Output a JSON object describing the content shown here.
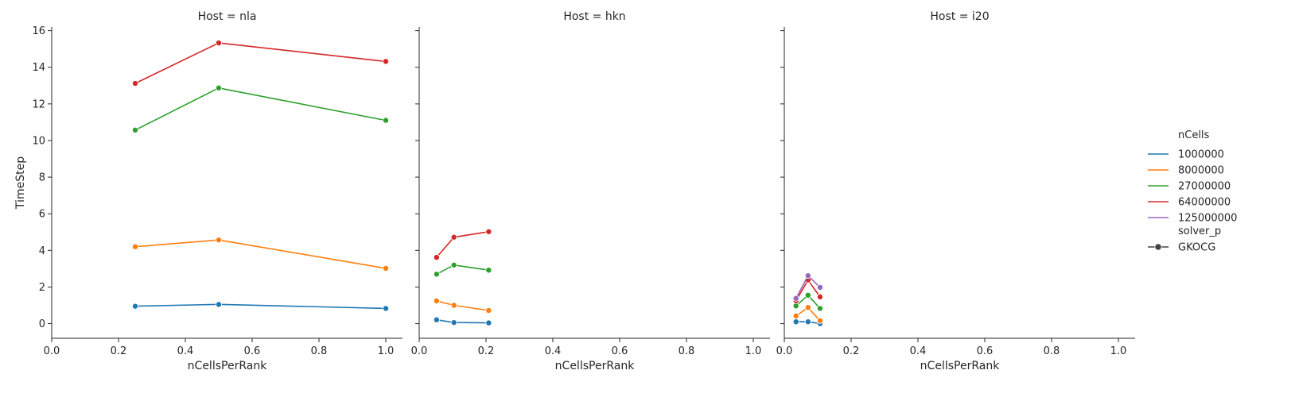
{
  "chart_data": {
    "type": "line",
    "ylabel": "TimeStep",
    "xlabel": "nCellsPerRank",
    "xlim": [
      0.0,
      1.05
    ],
    "ylim": [
      -0.8,
      16.2
    ],
    "xticks": [
      0.0,
      0.2,
      0.4,
      0.6,
      0.8,
      1.0
    ],
    "xtick_labels": [
      "0.0",
      "0.2",
      "0.4",
      "0.6",
      "0.8",
      "1.0"
    ],
    "yticks": [
      0,
      2,
      4,
      6,
      8,
      10,
      12,
      14,
      16
    ],
    "ytick_labels": [
      "0",
      "2",
      "4",
      "6",
      "8",
      "10",
      "12",
      "14",
      "16"
    ],
    "grid": false,
    "legend": {
      "placement": "right",
      "hue_title": "nCells",
      "style_title": "solver_p",
      "style_entry": "GKOCG",
      "entries": [
        {
          "name": "1000000",
          "color": "#1f77b4"
        },
        {
          "name": "8000000",
          "color": "#ff7f0e"
        },
        {
          "name": "27000000",
          "color": "#2ca02c"
        },
        {
          "name": "64000000",
          "color": "#d62728"
        },
        {
          "name": "125000000",
          "color": "#9467bd"
        }
      ]
    },
    "panels": [
      {
        "title": "Host = nla",
        "series": [
          {
            "name": "1000000",
            "x": [
              0.25,
              0.5,
              1.0
            ],
            "y": [
              0.95,
              1.05,
              0.83
            ]
          },
          {
            "name": "8000000",
            "x": [
              0.25,
              0.5,
              1.0
            ],
            "y": [
              4.2,
              4.57,
              3.02
            ]
          },
          {
            "name": "27000000",
            "x": [
              0.25,
              0.5,
              1.0
            ],
            "y": [
              10.57,
              12.87,
              11.1
            ]
          },
          {
            "name": "64000000",
            "x": [
              0.25,
              0.5,
              1.0
            ],
            "y": [
              13.12,
              15.33,
              14.32
            ]
          }
        ]
      },
      {
        "title": "Host = hkn",
        "series": [
          {
            "name": "1000000",
            "x": [
              0.052,
              0.104,
              0.208
            ],
            "y": [
              0.21,
              0.06,
              0.04
            ]
          },
          {
            "name": "8000000",
            "x": [
              0.052,
              0.104,
              0.208
            ],
            "y": [
              1.24,
              1.0,
              0.72
            ]
          },
          {
            "name": "27000000",
            "x": [
              0.052,
              0.104,
              0.208
            ],
            "y": [
              2.7,
              3.2,
              2.92
            ]
          },
          {
            "name": "64000000",
            "x": [
              0.052,
              0.104,
              0.208
            ],
            "y": [
              3.62,
              4.72,
              5.02
            ]
          }
        ]
      },
      {
        "title": "Host = i20",
        "series": [
          {
            "name": "1000000",
            "x": [
              0.035,
              0.071,
              0.107
            ],
            "y": [
              0.1,
              0.1,
              0.0
            ]
          },
          {
            "name": "8000000",
            "x": [
              0.035,
              0.071,
              0.107
            ],
            "y": [
              0.42,
              0.88,
              0.16
            ]
          },
          {
            "name": "27000000",
            "x": [
              0.035,
              0.071,
              0.107
            ],
            "y": [
              0.97,
              1.55,
              0.83
            ]
          },
          {
            "name": "64000000",
            "x": [
              0.035,
              0.071,
              0.107
            ],
            "y": [
              1.25,
              2.38,
              1.46
            ]
          },
          {
            "name": "125000000",
            "x": [
              0.035,
              0.071,
              0.107
            ],
            "y": [
              1.38,
              2.62,
              1.98
            ]
          }
        ]
      }
    ]
  }
}
